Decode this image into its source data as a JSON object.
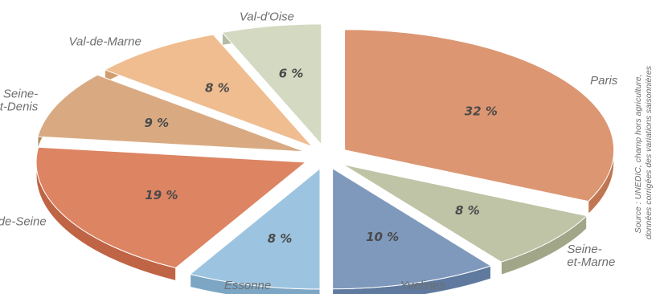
{
  "chart_data": {
    "type": "pie",
    "categories": [
      "Paris",
      "Seine-et-Marne",
      "Yvelines",
      "Essonne",
      "Hauts-de-Seine",
      "Seine-St-Denis",
      "Val-de-Marne",
      "Val-d'Oise"
    ],
    "values": [
      32,
      8,
      10,
      8,
      19,
      9,
      8,
      6
    ],
    "value_labels": [
      "32 %",
      "8 %",
      "10 %",
      "8 %",
      "19 %",
      "9 %",
      "8 %",
      "6 %"
    ],
    "category_labels": [
      [
        "Paris"
      ],
      [
        "Seine-",
        "et-Marne"
      ],
      [
        "Yvelines"
      ],
      [
        "Essonne"
      ],
      [
        "Hauts-de-Seine"
      ],
      [
        "Seine-",
        "St-Denis"
      ],
      [
        "Val-de-Marne"
      ],
      [
        "Val-d'Oise"
      ]
    ],
    "colors": [
      "#dc9672",
      "#bfc4a6",
      "#7f99bd",
      "#9cc4e0",
      "#dd8463",
      "#d9aa82",
      "#efbd90",
      "#d4d9c2"
    ],
    "side_colors": [
      "#c07652",
      "#a1a688",
      "#5f7a9e",
      "#7ca6c4",
      "#bf6445",
      "#bb8a62",
      "#d19d70",
      "#b5baa2"
    ],
    "source_lines": [
      "Source : UNEDIC, champ hors agriculture,",
      "données corrigées des variations saisonnières"
    ]
  }
}
